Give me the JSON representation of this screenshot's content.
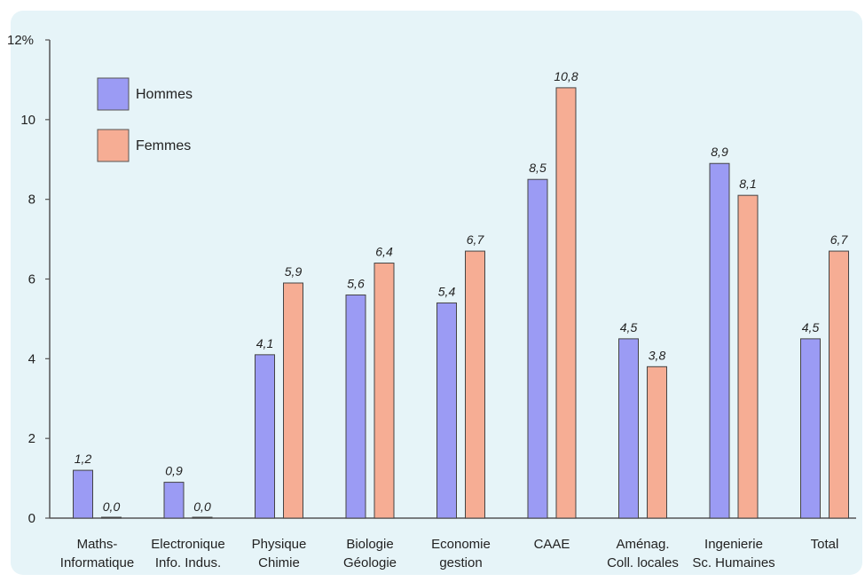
{
  "chart_data": {
    "type": "bar",
    "title": "",
    "xlabel": "",
    "ylabel": "",
    "y_unit_label": "12%",
    "ylim": [
      0,
      12
    ],
    "yticks": [
      0,
      2,
      4,
      6,
      8,
      10
    ],
    "legend_position": "top-left",
    "categories": [
      [
        "Maths-",
        "Informatique"
      ],
      [
        "Electronique",
        "Info. Indus."
      ],
      [
        "Physique",
        "Chimie"
      ],
      [
        "Biologie",
        "Géologie"
      ],
      [
        "Economie",
        "gestion"
      ],
      [
        "CAAE"
      ],
      [
        "Aménag.",
        "Coll. locales"
      ],
      [
        "Ingenierie",
        "Sc. Humaines"
      ],
      [
        "Total"
      ]
    ],
    "series": [
      {
        "name": "Hommes",
        "color": "#9b9bf4",
        "values": [
          1.2,
          0.9,
          4.1,
          5.6,
          5.4,
          8.5,
          4.5,
          8.9,
          4.5
        ],
        "labels": [
          "1,2",
          "0,9",
          "4,1",
          "5,6",
          "5,4",
          "8,5",
          "4,5",
          "8,9",
          "4,5"
        ]
      },
      {
        "name": "Femmes",
        "color": "#f6ad94",
        "values": [
          0.0,
          0.0,
          5.9,
          6.4,
          6.7,
          10.8,
          3.8,
          8.1,
          6.7
        ],
        "labels": [
          "0,0",
          "0,0",
          "5,9",
          "6,4",
          "6,7",
          "10,8",
          "3,8",
          "8,1",
          "6,7"
        ]
      }
    ],
    "background_color": "#e6f4f8",
    "grid": false
  }
}
